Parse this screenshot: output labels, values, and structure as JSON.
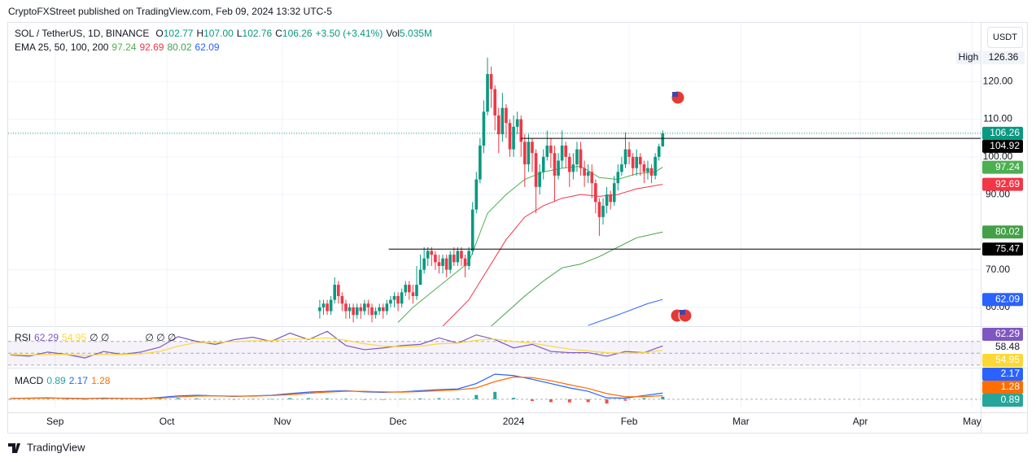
{
  "header": {
    "publisher": "CryptoFXStreet published on TradingView.com, Feb 09, 2024 13:32 UTC-5"
  },
  "toolbar": {
    "currency": "USDT"
  },
  "footer": {
    "brand": "TradingView"
  },
  "legend": {
    "symbol": "SOL / TetherUS, 1D, BINANCE",
    "ohlc": [
      {
        "key": "O",
        "value": "102.77"
      },
      {
        "key": "H",
        "value": "107.00"
      },
      {
        "key": "L",
        "value": "102.76"
      },
      {
        "key": "C",
        "value": "106.26"
      }
    ],
    "change": "+3.50 (+3.41%)",
    "volume": {
      "key": "Vol",
      "value": "5.035M"
    }
  },
  "chart_data": [
    {
      "type": "candlestick",
      "indicator_title": "EMA 25, 50, 100, 200",
      "high_label": "High",
      "up_color": "#089981",
      "down_color": "#f23645",
      "grid": true,
      "xlim": [
        -83.6,
        177.3
      ],
      "xticks": [
        {
          "value": -71,
          "label": "Sep"
        },
        {
          "value": -41,
          "label": "Oct"
        },
        {
          "value": -10,
          "label": "Nov"
        },
        {
          "value": 21,
          "label": "Dec"
        },
        {
          "value": 52,
          "label": "2024"
        },
        {
          "value": 83,
          "label": "Feb"
        },
        {
          "value": 113,
          "label": "Mar"
        },
        {
          "value": 145,
          "label": "Apr"
        },
        {
          "value": 175,
          "label": "May"
        }
      ],
      "ylim": [
        55,
        135.2
      ],
      "yticks": [
        {
          "value": 60,
          "label": "60.00"
        },
        {
          "value": 70,
          "label": "70.00"
        },
        {
          "value": 90,
          "label": "90.00"
        },
        {
          "value": 100,
          "label": "100.00"
        },
        {
          "value": 110,
          "label": "110.00"
        },
        {
          "value": 120,
          "label": "120.00"
        }
      ],
      "open": [
        59,
        60,
        61,
        59,
        62,
        66,
        63,
        61,
        59,
        60,
        58,
        60,
        59,
        61,
        60,
        58,
        59,
        60,
        59,
        61,
        62,
        63,
        61,
        64,
        66,
        64,
        63,
        66,
        70,
        73,
        75,
        74,
        72,
        71,
        73,
        70,
        74,
        72,
        75,
        73,
        71,
        75,
        86,
        94,
        103,
        112,
        122,
        118,
        111,
        106,
        113,
        109,
        102,
        108,
        110,
        104,
        98,
        104,
        101,
        92,
        96,
        100,
        103,
        101,
        95,
        99,
        103,
        100,
        96,
        98,
        102,
        97,
        95,
        96,
        93,
        88,
        84,
        87,
        90,
        88,
        93,
        96,
        98,
        102,
        100,
        97,
        100,
        98,
        96,
        97,
        95,
        100,
        102.77
      ],
      "high": [
        62,
        62,
        62,
        63,
        68,
        67,
        64,
        62,
        61,
        61,
        61,
        61,
        62,
        62,
        61,
        60,
        61,
        61,
        62,
        63,
        64,
        64,
        65,
        67,
        67,
        66,
        71,
        74,
        76,
        76,
        76,
        75,
        74,
        74,
        74,
        75,
        76,
        76,
        76,
        74,
        76,
        88,
        96,
        105,
        115,
        126.36,
        124,
        119,
        113,
        117,
        114,
        110,
        111,
        112,
        111,
        106,
        106,
        105,
        102,
        98,
        102,
        107,
        105,
        103,
        101,
        107,
        104,
        101,
        101,
        104,
        104,
        99,
        98,
        98,
        94,
        89,
        89,
        92,
        91,
        95,
        98,
        100,
        106.5,
        104,
        101,
        102,
        101,
        99,
        99,
        98,
        101,
        103.5,
        107
      ],
      "low": [
        57,
        58,
        58,
        58,
        61,
        61,
        59,
        57,
        57,
        56,
        57,
        57,
        58,
        58,
        56,
        57,
        58,
        57,
        58,
        60,
        60,
        59,
        60,
        63,
        62,
        61,
        62,
        66,
        69,
        71,
        71,
        70,
        69,
        69,
        68,
        69,
        71,
        71,
        71,
        68,
        70,
        74,
        85,
        93,
        101,
        111,
        113,
        107,
        101,
        104,
        105,
        100,
        100,
        106,
        100,
        92,
        96,
        96,
        85,
        90,
        94,
        99,
        97,
        88,
        94,
        97,
        97,
        92,
        94,
        96,
        95,
        92,
        93,
        89,
        85,
        79,
        82,
        85,
        86,
        87,
        91,
        95,
        97,
        98,
        95,
        95,
        95,
        93,
        94,
        93,
        94,
        99,
        102.76
      ],
      "close": [
        60,
        61,
        59,
        62,
        66,
        63,
        61,
        59,
        60,
        58,
        60,
        59,
        61,
        60,
        58,
        59,
        60,
        59,
        61,
        62,
        63,
        61,
        64,
        66,
        64,
        63,
        66,
        70,
        73,
        75,
        74,
        72,
        71,
        73,
        70,
        74,
        72,
        75,
        73,
        71,
        75,
        86,
        94,
        103,
        112,
        122,
        118,
        111,
        106,
        113,
        109,
        102,
        108,
        110,
        104,
        98,
        104,
        101,
        92,
        96,
        100,
        103,
        101,
        95,
        99,
        103,
        100,
        96,
        98,
        102,
        97,
        95,
        96,
        93,
        88,
        84,
        87,
        90,
        88,
        93,
        96,
        98,
        102,
        100,
        97,
        100,
        98,
        96,
        97,
        95,
        100,
        102.76,
        106.26
      ],
      "series": [
        {
          "color": "#4caf50",
          "x": [
            21,
            25,
            30,
            35,
            40,
            45,
            50,
            55,
            60,
            65,
            70,
            75,
            80,
            85,
            90,
            92
          ],
          "values": [
            56,
            60,
            64,
            68,
            72,
            85,
            90,
            94,
            96,
            97,
            97.5,
            94.5,
            94,
            95.5,
            96,
            97.24
          ]
        },
        {
          "color": "#f23645",
          "x": [
            33,
            40,
            45,
            50,
            55,
            60,
            65,
            70,
            75,
            80,
            85,
            92
          ],
          "values": [
            55,
            62,
            70,
            78,
            84,
            87,
            89,
            90,
            89.5,
            90,
            91.5,
            92.69
          ]
        },
        {
          "color": "#43a047",
          "x": [
            46,
            55,
            60,
            65,
            70,
            75,
            80,
            85,
            92
          ],
          "values": [
            55,
            63,
            67,
            70.5,
            71.5,
            73.5,
            76,
            78.5,
            80.02
          ]
        },
        {
          "color": "#2962ff",
          "x": [
            72,
            80,
            88,
            92
          ],
          "values": [
            55.2,
            58,
            61,
            62.09
          ]
        }
      ],
      "hlines": [
        {
          "value": 104.92,
          "from": 54,
          "color": "#000000"
        },
        {
          "value": 75.47,
          "from": 18.5,
          "color": "#000000"
        }
      ]
    },
    {
      "type": "line",
      "title": "RSI",
      "legend_extra": [
        "∅ ∅",
        "∅ ∅ ∅"
      ],
      "levels": [
        70,
        50,
        30
      ],
      "band_color": "#7e57c2",
      "ylim": [
        27,
        93
      ],
      "extra_label": 58.48,
      "series": [
        {
          "color": "#7e57c2",
          "x": [
            -83,
            -78,
            -73,
            -68,
            -63,
            -58,
            -53,
            -48,
            -43,
            -38,
            -33,
            -28,
            -23,
            -18,
            -13,
            -8,
            -3,
            2,
            7,
            12,
            17,
            22,
            27,
            32,
            37,
            42,
            47,
            52,
            57,
            62,
            67,
            72,
            77,
            82,
            87,
            92
          ],
          "values": [
            47,
            45,
            52,
            48,
            42,
            53,
            48,
            52,
            60,
            78,
            70,
            65,
            73,
            77,
            70,
            84,
            73,
            87,
            63,
            56,
            59,
            63,
            65,
            76,
            67,
            81,
            73,
            59,
            65,
            53,
            51,
            51,
            45,
            53,
            51,
            62.29
          ]
        },
        {
          "color": "#fdd835",
          "x": [
            -83,
            -78,
            -73,
            -68,
            -63,
            -58,
            -53,
            -48,
            -43,
            -38,
            -33,
            -28,
            -23,
            -18,
            -13,
            -8,
            -3,
            2,
            7,
            12,
            17,
            22,
            27,
            32,
            37,
            42,
            47,
            52,
            57,
            62,
            67,
            72,
            77,
            82,
            87,
            92
          ],
          "values": [
            48,
            47,
            48,
            48,
            46,
            48,
            48,
            49,
            53,
            62,
            68,
            68,
            70,
            71,
            71,
            74,
            74,
            76,
            72,
            66,
            62,
            61,
            62,
            66,
            67,
            72,
            74,
            70,
            67,
            62,
            57,
            54,
            51,
            50,
            51,
            54.95
          ]
        }
      ]
    },
    {
      "type": "line",
      "title": "MACD",
      "zero_line": true,
      "ylim": [
        -2.6,
        10.8
      ],
      "series": [
        {
          "color": "#2962ff",
          "x": [
            -83,
            -78,
            -73,
            -68,
            -63,
            -58,
            -53,
            -48,
            -43,
            -38,
            -33,
            -28,
            -23,
            -18,
            -13,
            -8,
            -3,
            2,
            7,
            12,
            17,
            22,
            27,
            32,
            37,
            42,
            47,
            52,
            57,
            62,
            67,
            72,
            77,
            82,
            87,
            92
          ],
          "values": [
            0.3,
            0.4,
            0.5,
            0.3,
            0.2,
            0.4,
            0.3,
            0.2,
            0.6,
            1.2,
            1.4,
            1.2,
            1.0,
            1.2,
            1.4,
            2.0,
            2.5,
            2.8,
            3.0,
            2.6,
            2.4,
            2.6,
            3.0,
            3.4,
            3.6,
            5.5,
            8.8,
            8.3,
            7.0,
            5.5,
            4.0,
            2.8,
            0.5,
            0.4,
            1.3,
            2.17
          ]
        },
        {
          "color": "#ff6d00",
          "x": [
            -83,
            -78,
            -73,
            -68,
            -63,
            -58,
            -53,
            -48,
            -43,
            -38,
            -33,
            -28,
            -23,
            -18,
            -13,
            -8,
            -3,
            2,
            7,
            12,
            17,
            22,
            27,
            32,
            37,
            42,
            47,
            52,
            57,
            62,
            67,
            72,
            77,
            82,
            87,
            92
          ],
          "values": [
            0.3,
            0.35,
            0.4,
            0.4,
            0.3,
            0.3,
            0.3,
            0.3,
            0.4,
            0.8,
            1.1,
            1.2,
            1.1,
            1.1,
            1.3,
            1.6,
            2.1,
            2.5,
            2.8,
            2.8,
            2.6,
            2.5,
            2.7,
            3.0,
            3.3,
            4.0,
            6.2,
            7.8,
            7.6,
            6.5,
            5.1,
            3.8,
            2.0,
            0.9,
            0.9,
            1.28
          ]
        },
        {
          "type": "bar",
          "color": "#26a69a",
          "down_color": "#ef5350",
          "x": [
            -83,
            -78,
            -73,
            -68,
            -63,
            -58,
            -53,
            -48,
            -43,
            -38,
            -33,
            -28,
            -23,
            -18,
            -13,
            -8,
            -3,
            2,
            7,
            12,
            17,
            22,
            27,
            32,
            37,
            42,
            47,
            52,
            57,
            62,
            67,
            72,
            77,
            82,
            87,
            92
          ],
          "values": [
            0,
            0.05,
            0.1,
            -0.1,
            -0.1,
            0.1,
            0,
            -0.1,
            0.2,
            0.4,
            0.3,
            0,
            -0.1,
            0.1,
            0.1,
            0.4,
            0.4,
            0.3,
            0.2,
            -0.2,
            -0.2,
            0.1,
            0.3,
            0.4,
            0.3,
            1.5,
            2.6,
            0.5,
            -0.6,
            -1.0,
            -1.1,
            -1.0,
            -1.5,
            -0.5,
            0.4,
            0.89
          ]
        }
      ]
    }
  ]
}
